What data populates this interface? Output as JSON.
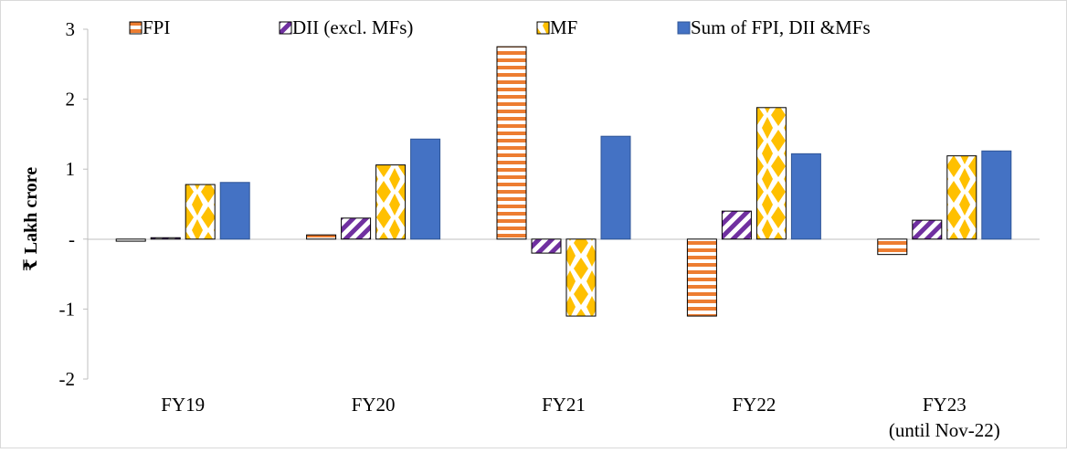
{
  "chart_data": {
    "type": "bar",
    "ylabel": "₹ Lakh crore",
    "ylim": [
      -2,
      3
    ],
    "yticks": [
      {
        "value": 3,
        "label": "3"
      },
      {
        "value": 2,
        "label": "2"
      },
      {
        "value": 1,
        "label": "1"
      },
      {
        "value": 0,
        "label": "-"
      },
      {
        "value": -1,
        "label": "-1"
      },
      {
        "value": -2,
        "label": "-2"
      }
    ],
    "categories": [
      {
        "line1": "FY19",
        "line2": ""
      },
      {
        "line1": "FY20",
        "line2": ""
      },
      {
        "line1": "FY21",
        "line2": ""
      },
      {
        "line1": "FY22",
        "line2": ""
      },
      {
        "line1": "FY23",
        "line2": "(until Nov-22)"
      }
    ],
    "series": [
      {
        "name": "FPI",
        "pattern": "stripes",
        "color": "#ED7D31",
        "values": [
          -0.03,
          0.06,
          2.75,
          -1.1,
          -0.22
        ]
      },
      {
        "name": "DII (excl. MFs)",
        "pattern": "diagonal",
        "color": "#7030A0",
        "values": [
          0.02,
          0.3,
          -0.2,
          0.4,
          0.27
        ]
      },
      {
        "name": "MF",
        "pattern": "diamonds",
        "color": "#FFC000",
        "values": [
          0.78,
          1.06,
          -1.1,
          1.88,
          1.19
        ]
      },
      {
        "name": "Sum of FPI, DII &MFs",
        "pattern": "solid",
        "color": "#4472C4",
        "values": [
          0.81,
          1.43,
          1.47,
          1.22,
          1.26
        ]
      }
    ],
    "legend_position": "top",
    "grid": false
  }
}
